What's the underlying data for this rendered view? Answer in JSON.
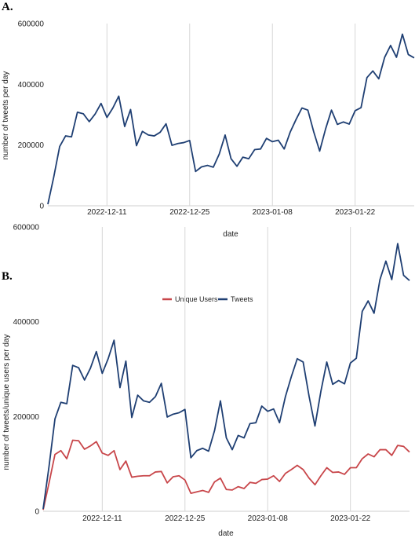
{
  "chart_data": [
    {
      "type": "line",
      "panel_label": "A.",
      "xlabel": "date",
      "ylabel": "number of tweets per day",
      "ylim": [
        0,
        600000
      ],
      "yticks": [
        "0",
        "200000",
        "400000",
        "600000"
      ],
      "xticks": [
        {
          "label": "2022-12-11",
          "day": 10
        },
        {
          "label": "2022-12-25",
          "day": 24
        },
        {
          "label": "2023-01-08",
          "day": 38
        },
        {
          "label": "2023-01-22",
          "day": 52
        }
      ],
      "grid": "vertical",
      "legend": false,
      "x_start": "2022-12-01",
      "series": [
        {
          "color": "#1f3f73",
          "values": [
            5000,
            95000,
            195000,
            230000,
            227000,
            308000,
            303000,
            277000,
            302000,
            337000,
            291000,
            322000,
            361000,
            261000,
            317000,
            198000,
            245000,
            233000,
            230000,
            242000,
            270000,
            199000,
            205000,
            208000,
            215000,
            113000,
            128000,
            133000,
            127000,
            170000,
            233000,
            155000,
            130000,
            160000,
            155000,
            185000,
            187000,
            222000,
            211000,
            216000,
            187000,
            242000,
            284000,
            322000,
            315000,
            243000,
            180000,
            253000,
            315000,
            268000,
            276000,
            269000,
            313000,
            323000,
            422000,
            444000,
            418000,
            489000,
            528000,
            489000,
            565000,
            498000,
            487000
          ]
        }
      ]
    },
    {
      "type": "line",
      "panel_label": "B.",
      "xlabel": "date",
      "ylabel": "number of tweets/unique users per day",
      "ylim": [
        0,
        600000
      ],
      "yticks": [
        "0",
        "200000",
        "400000",
        "600000"
      ],
      "xticks": [
        {
          "label": "2022-12-11",
          "day": 10
        },
        {
          "label": "2022-12-25",
          "day": 24
        },
        {
          "label": "2023-01-08",
          "day": 38
        },
        {
          "label": "2023-01-22",
          "day": 52
        }
      ],
      "grid": "vertical",
      "legend": "top-center",
      "x_start": "2022-12-01",
      "series": [
        {
          "name": "Unique Users",
          "color": "#c8464a",
          "values": [
            3000,
            60000,
            120000,
            128000,
            111000,
            150000,
            149000,
            131000,
            138000,
            147000,
            123000,
            118000,
            128000,
            88000,
            106000,
            72000,
            74000,
            75000,
            75000,
            83000,
            84000,
            60000,
            73000,
            75000,
            66000,
            38000,
            41000,
            44000,
            40000,
            62000,
            70000,
            46000,
            45000,
            52000,
            48000,
            61000,
            59000,
            67000,
            68000,
            75000,
            63000,
            80000,
            88000,
            97000,
            88000,
            70000,
            56000,
            75000,
            92000,
            82000,
            83000,
            78000,
            92000,
            92000,
            111000,
            121000,
            115000,
            130000,
            130000,
            118000,
            139000,
            137000,
            125000
          ]
        },
        {
          "name": "Tweets",
          "color": "#1f3f73",
          "values": [
            5000,
            95000,
            195000,
            230000,
            227000,
            308000,
            303000,
            277000,
            302000,
            337000,
            291000,
            322000,
            361000,
            261000,
            317000,
            198000,
            245000,
            233000,
            230000,
            242000,
            270000,
            199000,
            205000,
            208000,
            215000,
            113000,
            128000,
            133000,
            127000,
            170000,
            233000,
            155000,
            130000,
            160000,
            155000,
            185000,
            187000,
            222000,
            211000,
            216000,
            187000,
            242000,
            284000,
            322000,
            315000,
            243000,
            180000,
            253000,
            315000,
            268000,
            276000,
            269000,
            313000,
            323000,
            422000,
            444000,
            418000,
            489000,
            528000,
            489000,
            565000,
            498000,
            487000
          ]
        }
      ]
    }
  ]
}
